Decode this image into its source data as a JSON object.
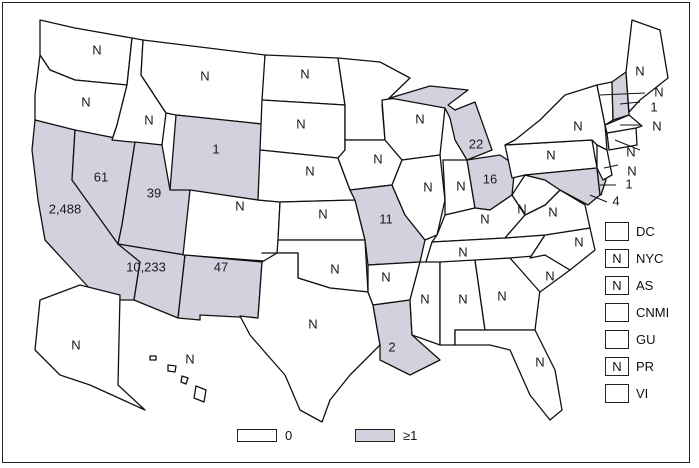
{
  "colors": {
    "zero": "#ffffff",
    "one_or_more": "#d2d2de",
    "border": "#111111"
  },
  "states": {
    "WA": {
      "label": "N",
      "category": "0"
    },
    "OR": {
      "label": "N",
      "category": "0"
    },
    "CA": {
      "label": "2,488",
      "category": ">=1"
    },
    "NV": {
      "label": "61",
      "category": ">=1"
    },
    "ID": {
      "label": "N",
      "category": "0"
    },
    "MT": {
      "label": "N",
      "category": "0"
    },
    "WY": {
      "label": "1",
      "category": ">=1"
    },
    "UT": {
      "label": "39",
      "category": ">=1"
    },
    "AZ": {
      "label": "10,233",
      "category": ">=1"
    },
    "CO": {
      "label": "N",
      "category": "0"
    },
    "NM": {
      "label": "47",
      "category": ">=1"
    },
    "ND": {
      "label": "N",
      "category": "0"
    },
    "SD": {
      "label": "N",
      "category": "0"
    },
    "NE": {
      "label": "N",
      "category": "0"
    },
    "KS": {
      "label": "N",
      "category": "0"
    },
    "OK": {
      "label": "N",
      "category": "0"
    },
    "TX": {
      "label": "N",
      "category": "0"
    },
    "MN": {
      "label": "",
      "category": "0"
    },
    "IA": {
      "label": "N",
      "category": "0"
    },
    "MO": {
      "label": "11",
      "category": ">=1"
    },
    "AR": {
      "label": "N",
      "category": "0"
    },
    "LA": {
      "label": "2",
      "category": ">=1"
    },
    "WI": {
      "label": "N",
      "category": "0"
    },
    "IL": {
      "label": "N",
      "category": "0"
    },
    "MI": {
      "label": "22",
      "category": ">=1"
    },
    "IN": {
      "label": "N",
      "category": "0"
    },
    "OH": {
      "label": "16",
      "category": ">=1"
    },
    "KY": {
      "label": "N",
      "category": "0"
    },
    "TN": {
      "label": "N",
      "category": "0"
    },
    "MS": {
      "label": "N",
      "category": "0"
    },
    "AL": {
      "label": "N",
      "category": "0"
    },
    "GA": {
      "label": "N",
      "category": "0"
    },
    "FL": {
      "label": "N",
      "category": "0"
    },
    "SC": {
      "label": "N",
      "category": "0"
    },
    "NC": {
      "label": "N",
      "category": "0"
    },
    "VA": {
      "label": "N",
      "category": "0"
    },
    "WV": {
      "label": "N",
      "category": "0"
    },
    "PA": {
      "label": "N",
      "category": "0"
    },
    "NY": {
      "label": "N",
      "category": "0"
    },
    "MD": {
      "label": "4",
      "category": ">=1"
    },
    "DE": {
      "label": "1",
      "category": ">=1"
    },
    "NJ": {
      "label": "N",
      "category": "0"
    },
    "CT": {
      "label": "N",
      "category": "0"
    },
    "MA": {
      "label": "N",
      "category": "0"
    },
    "VT": {
      "label": "N",
      "category": "0"
    },
    "NH": {
      "label": "1",
      "category": ">=1"
    },
    "ME": {
      "label": "N",
      "category": "0"
    },
    "AK": {
      "label": "N",
      "category": "0"
    },
    "HI": {
      "label": "N",
      "category": "0"
    }
  },
  "territories": [
    {
      "name": "DC",
      "value": ""
    },
    {
      "name": "NYC",
      "value": "N"
    },
    {
      "name": "AS",
      "value": "N"
    },
    {
      "name": "CNMI",
      "value": ""
    },
    {
      "name": "GU",
      "value": ""
    },
    {
      "name": "PR",
      "value": "N"
    },
    {
      "name": "VI",
      "value": ""
    }
  ],
  "legend": [
    {
      "label": "0",
      "category": "0"
    },
    {
      "label": "≥1",
      "category": ">=1"
    }
  ]
}
